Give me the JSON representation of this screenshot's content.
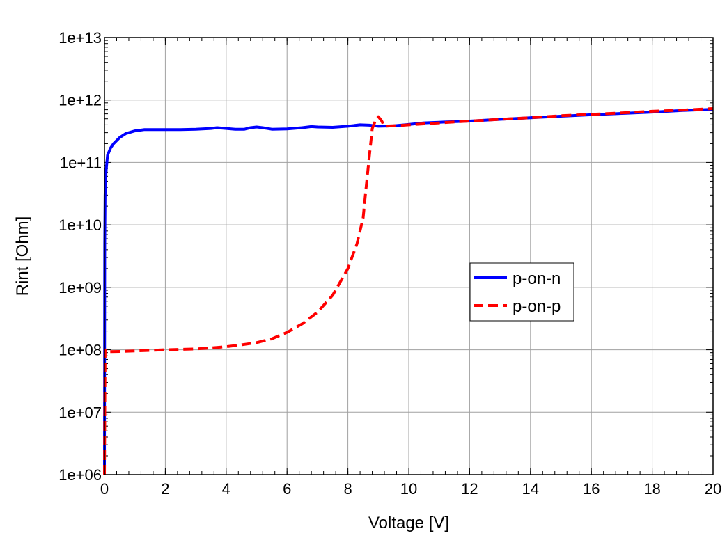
{
  "chart_data": {
    "type": "line",
    "xlabel": "Voltage [V]",
    "ylabel": "Rint [Ohm]",
    "xlim": [
      0,
      20
    ],
    "ylim": [
      1000000.0,
      10000000000000.0
    ],
    "yscale": "log",
    "grid": true,
    "legend_position": "center-right",
    "x_tick_labels": [
      "0",
      "2",
      "4",
      "6",
      "8",
      "10",
      "12",
      "14",
      "16",
      "18",
      "20"
    ],
    "y_tick_labels": [
      "1e+06",
      "1e+07",
      "1e+08",
      "1e+09",
      "1e+10",
      "1e+11",
      "1e+12",
      "1e+13"
    ],
    "series": [
      {
        "name": "p-on-n",
        "color": "#0000ff",
        "style": "solid",
        "x": [
          0,
          0.01,
          0.02,
          0.05,
          0.1,
          0.2,
          0.3,
          0.5,
          0.7,
          1.0,
          1.3,
          1.6,
          2,
          2.5,
          3,
          3.5,
          3.7,
          4,
          4.3,
          4.6,
          4.8,
          5,
          5.2,
          5.5,
          6,
          6.5,
          6.8,
          7,
          7.5,
          8,
          8.4,
          8.7,
          9,
          9.5,
          10,
          10.5,
          11,
          12,
          13,
          14,
          15,
          16,
          17,
          18,
          19,
          20
        ],
        "y": [
          1000000.0,
          5000000000.0,
          30000000000.0,
          70000000000.0,
          130000000000.0,
          170000000000.0,
          200000000000.0,
          250000000000.0,
          290000000000.0,
          320000000000.0,
          335000000000.0,
          335000000000.0,
          335000000000.0,
          335000000000.0,
          340000000000.0,
          350000000000.0,
          360000000000.0,
          350000000000.0,
          340000000000.0,
          340000000000.0,
          360000000000.0,
          370000000000.0,
          360000000000.0,
          340000000000.0,
          345000000000.0,
          360000000000.0,
          375000000000.0,
          370000000000.0,
          365000000000.0,
          380000000000.0,
          400000000000.0,
          395000000000.0,
          380000000000.0,
          385000000000.0,
          405000000000.0,
          430000000000.0,
          440000000000.0,
          460000000000.0,
          490000000000.0,
          520000000000.0,
          550000000000.0,
          580000000000.0,
          610000000000.0,
          640000000000.0,
          680000000000.0,
          710000000000.0
        ]
      },
      {
        "name": "p-on-p",
        "color": "#ff0000",
        "style": "dashed",
        "x": [
          0,
          0.02,
          0.05,
          0.1,
          0.5,
          1,
          2,
          3,
          3.5,
          4,
          4.5,
          5,
          5.5,
          6,
          6.5,
          7,
          7.5,
          8,
          8.3,
          8.5,
          8.6,
          8.7,
          8.8,
          8.9,
          9.0,
          9.1,
          9.2,
          9.4,
          9.7,
          10,
          11,
          12,
          13,
          14,
          15,
          16,
          17,
          18,
          19,
          20
        ],
        "y": [
          1000000.0,
          100000000.0,
          92000000.0,
          93000000.0,
          94000000.0,
          96000000.0,
          100000000.0,
          103000000.0,
          107000000.0,
          112000000.0,
          120000000.0,
          130000000.0,
          150000000.0,
          190000000.0,
          260000000.0,
          400000000.0,
          750000000.0,
          2000000000.0,
          5000000000.0,
          13000000000.0,
          40000000000.0,
          120000000000.0,
          350000000000.0,
          460000000000.0,
          540000000000.0,
          470000000000.0,
          380000000000.0,
          385000000000.0,
          390000000000.0,
          400000000000.0,
          430000000000.0,
          460000000000.0,
          490000000000.0,
          520000000000.0,
          560000000000.0,
          590000000000.0,
          620000000000.0,
          660000000000.0,
          690000000000.0,
          730000000000.0
        ]
      }
    ]
  }
}
